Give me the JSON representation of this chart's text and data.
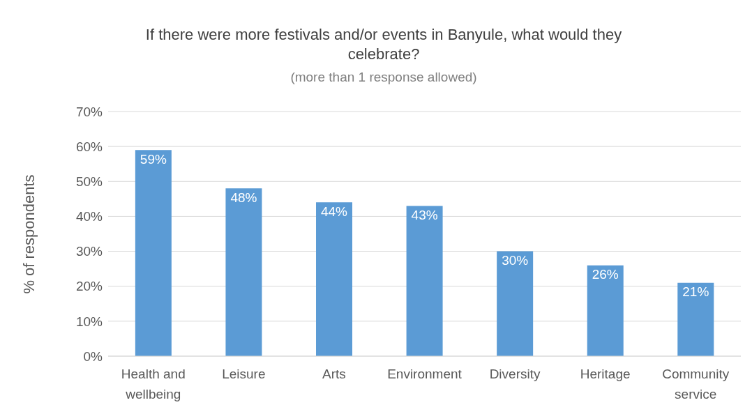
{
  "chart_data": {
    "type": "bar",
    "title": "If there were more festivals and/or events in Banyule, what would they celebrate?",
    "subtitle": "(more than 1 response allowed)",
    "ylabel": "% of respondents",
    "categories": [
      "Health and wellbeing",
      "Leisure",
      "Arts",
      "Environment",
      "Diversity",
      "Heritage",
      "Community service"
    ],
    "values": [
      59,
      48,
      44,
      43,
      30,
      26,
      21
    ],
    "value_labels": [
      "59%",
      "48%",
      "44%",
      "43%",
      "30%",
      "26%",
      "21%"
    ],
    "color": "#5b9bd5",
    "ylim": [
      0,
      70
    ],
    "yticks": [
      {
        "value": 0,
        "label": "0%"
      },
      {
        "value": 10,
        "label": "10%"
      },
      {
        "value": 20,
        "label": "20%"
      },
      {
        "value": 30,
        "label": "30%"
      },
      {
        "value": 40,
        "label": "40%"
      },
      {
        "value": 50,
        "label": "50%"
      },
      {
        "value": 60,
        "label": "60%"
      },
      {
        "value": 70,
        "label": "70%"
      }
    ],
    "grid": "y",
    "legend": false
  }
}
